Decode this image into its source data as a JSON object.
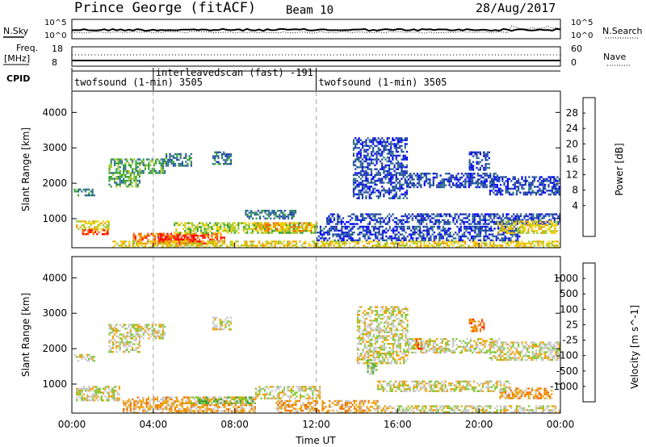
{
  "header": {
    "station": "Prince George (fitACF)",
    "beam": "Beam 10",
    "date": "28/Aug/2017"
  },
  "top_panels": {
    "nsky_label": "N.Sky",
    "nsky_ticks": [
      "10^5",
      "10^0"
    ],
    "nsearch_label": "N.Search",
    "nsearch_ticks": [
      "10^5",
      "10^0"
    ],
    "freq_label_1": "Freq.",
    "freq_label_2": "[MHz]",
    "freq_ticks": [
      "18",
      "8"
    ],
    "nave_label": "Nave",
    "nave_ticks": [
      "60",
      "0"
    ],
    "cpid_label": "CPID",
    "cpid_segments": [
      {
        "label": "twofsound (1-min) 3505",
        "start_hour": 0,
        "end_hour": 4
      },
      {
        "label": "interleavedscan (fast) -191",
        "start_hour": 4,
        "end_hour": 12
      },
      {
        "label": "twofsound (1-min) 3505",
        "start_hour": 12,
        "end_hour": 24
      }
    ]
  },
  "chart_data": [
    {
      "type": "heatmap",
      "name": "power",
      "ylabel": "Slant Range [km]",
      "ylim": [
        180,
        4600
      ],
      "yticks": [
        "1000",
        "2000",
        "3000",
        "4000"
      ],
      "xlim": [
        0,
        24
      ],
      "colorbar": {
        "label": "Power [dB]",
        "ticks": [
          "28",
          "24",
          "20",
          "16",
          "12",
          "8",
          "4"
        ],
        "colors": [
          "#0000ff",
          "#2040a8",
          "#2e6e8e",
          "#30a030",
          "#a0c830",
          "#f0d000",
          "#f0a000",
          "#f06000",
          "#ff0000"
        ]
      },
      "regions": [
        {
          "x": [
            0.1,
            1.1
          ],
          "y": [
            1650,
            1850
          ],
          "level": 2
        },
        {
          "x": [
            1.8,
            3.3
          ],
          "y": [
            1900,
            2700
          ],
          "level": 3
        },
        {
          "x": [
            3.3,
            4.6
          ],
          "y": [
            2300,
            2700
          ],
          "level": 3
        },
        {
          "x": [
            4.6,
            5.9
          ],
          "y": [
            2500,
            2850
          ],
          "level": 2
        },
        {
          "x": [
            6.9,
            7.8
          ],
          "y": [
            2550,
            2900
          ],
          "level": 2
        },
        {
          "x": [
            0.2,
            1.8
          ],
          "y": [
            700,
            950
          ],
          "level": 5
        },
        {
          "x": [
            0.5,
            1.8
          ],
          "y": [
            550,
            700
          ],
          "level": 7
        },
        {
          "x": [
            3.0,
            7.5
          ],
          "y": [
            300,
            600
          ],
          "level": 7
        },
        {
          "x": [
            4.2,
            6.2
          ],
          "y": [
            300,
            550
          ],
          "level": 8
        },
        {
          "x": [
            5.0,
            12.0
          ],
          "y": [
            580,
            900
          ],
          "level": 4
        },
        {
          "x": [
            9.0,
            12.0
          ],
          "y": [
            650,
            900
          ],
          "level": 6
        },
        {
          "x": [
            8.5,
            11.0
          ],
          "y": [
            1000,
            1250
          ],
          "level": 2
        },
        {
          "x": [
            2.0,
            24.0
          ],
          "y": [
            200,
            380
          ],
          "level": 5
        },
        {
          "x": [
            12.0,
            22.0
          ],
          "y": [
            400,
            800
          ],
          "level": 1
        },
        {
          "x": [
            12.5,
            24.0
          ],
          "y": [
            850,
            1150
          ],
          "level": 1
        },
        {
          "x": [
            13.8,
            16.5
          ],
          "y": [
            1600,
            3300
          ],
          "level": 1
        },
        {
          "x": [
            16.5,
            21.0
          ],
          "y": [
            1900,
            2300
          ],
          "level": 1
        },
        {
          "x": [
            20.5,
            24.0
          ],
          "y": [
            1700,
            2200
          ],
          "level": 1
        },
        {
          "x": [
            19.5,
            20.5
          ],
          "y": [
            2400,
            2900
          ],
          "level": 1
        },
        {
          "x": [
            20.9,
            23.8
          ],
          "y": [
            600,
            950
          ],
          "level": 5
        }
      ]
    },
    {
      "type": "heatmap",
      "name": "velocity",
      "ylabel": "Slant Range [km]",
      "ylim": [
        180,
        4600
      ],
      "yticks": [
        "1000",
        "2000",
        "3000",
        "4000"
      ],
      "xlim": [
        0,
        24
      ],
      "xticks": [
        "00:00",
        "04:00",
        "08:00",
        "12:00",
        "16:00",
        "20:00",
        "00:00"
      ],
      "xlabel": "Time UT",
      "colorbar": {
        "label": "Velocity [m s^-1]",
        "ticks": [
          "1000",
          "500",
          "100",
          "25",
          "-25",
          "-100",
          "-500",
          "-1000"
        ],
        "colors": [
          "#2040c0",
          "#2e6e8e",
          "#30a030",
          "#80c830",
          "#c8c8c8",
          "#f0a000",
          "#f07000",
          "#ff2000",
          "#ff0000"
        ]
      },
      "regions": [
        {
          "x": [
            0.1,
            1.1
          ],
          "y": [
            1650,
            1850
          ],
          "level": 4
        },
        {
          "x": [
            1.8,
            3.3
          ],
          "y": [
            1900,
            2700
          ],
          "level": 4
        },
        {
          "x": [
            3.3,
            4.6
          ],
          "y": [
            2300,
            2700
          ],
          "level": 4
        },
        {
          "x": [
            6.9,
            7.8
          ],
          "y": [
            2550,
            2900
          ],
          "level": 4
        },
        {
          "x": [
            0.2,
            2.3
          ],
          "y": [
            550,
            950
          ],
          "level": 4
        },
        {
          "x": [
            2.5,
            9.0
          ],
          "y": [
            200,
            650
          ],
          "level": 5
        },
        {
          "x": [
            5.8,
            9.0
          ],
          "y": [
            450,
            650
          ],
          "level": 3
        },
        {
          "x": [
            9.0,
            12.2
          ],
          "y": [
            600,
            950
          ],
          "level": 4
        },
        {
          "x": [
            10.0,
            15.0
          ],
          "y": [
            200,
            550
          ],
          "level": 5
        },
        {
          "x": [
            15.0,
            24.0
          ],
          "y": [
            200,
            400
          ],
          "level": 4
        },
        {
          "x": [
            14.0,
            16.5
          ],
          "y": [
            1600,
            3200
          ],
          "level": 4
        },
        {
          "x": [
            14.5,
            15.0
          ],
          "y": [
            1300,
            1700
          ],
          "level": 3
        },
        {
          "x": [
            16.5,
            21.0
          ],
          "y": [
            1900,
            2300
          ],
          "level": 4
        },
        {
          "x": [
            20.5,
            24.0
          ],
          "y": [
            1700,
            2200
          ],
          "level": 4
        },
        {
          "x": [
            21.0,
            23.6
          ],
          "y": [
            600,
            900
          ],
          "level": 5
        },
        {
          "x": [
            15.0,
            21.5
          ],
          "y": [
            800,
            1100
          ],
          "level": 4
        },
        {
          "x": [
            19.5,
            20.2
          ],
          "y": [
            2500,
            2850
          ],
          "level": 6
        },
        {
          "x": [
            16.8,
            17.2
          ],
          "y": [
            2000,
            2300
          ],
          "level": 6
        }
      ]
    }
  ]
}
